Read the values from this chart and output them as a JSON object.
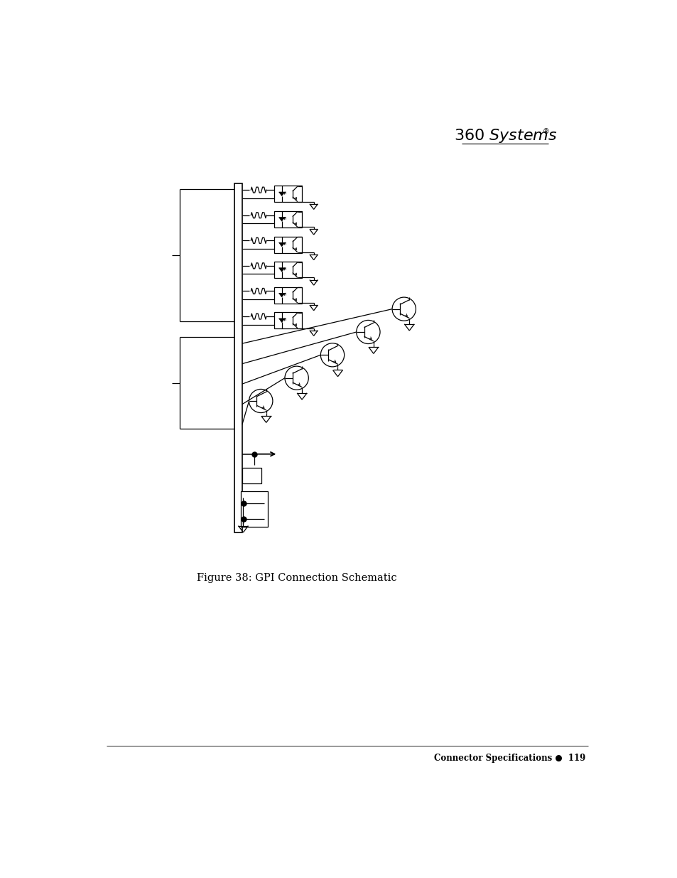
{
  "title": "Figure 38: GPI Connection Schematic",
  "footer_right": "Connector Specifications ●  119",
  "bg_color": "#ffffff",
  "fig_width": 9.54,
  "fig_height": 12.35
}
